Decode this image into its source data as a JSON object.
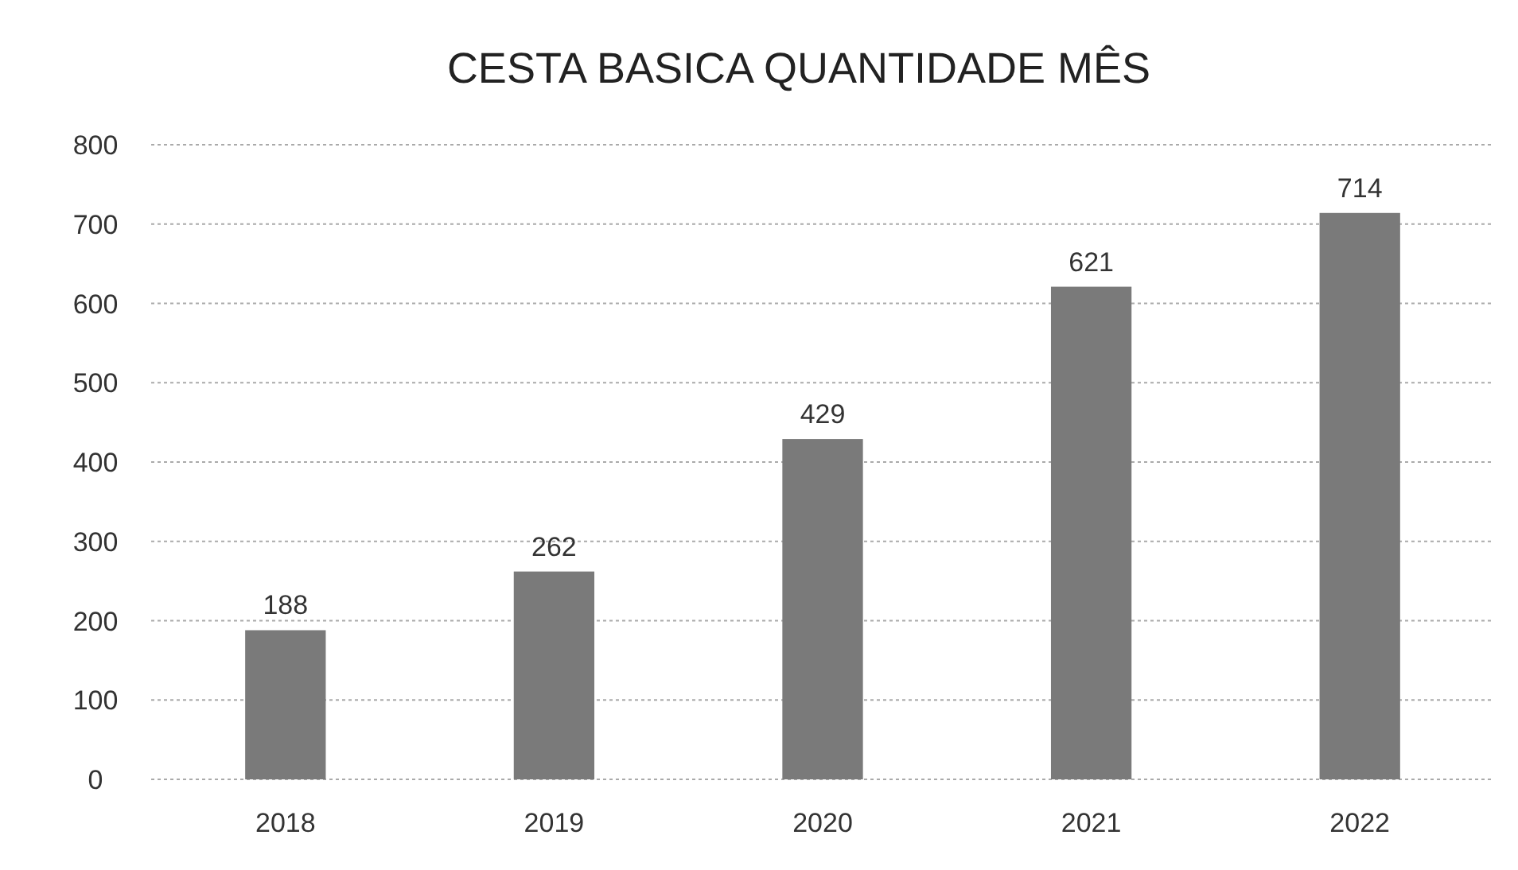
{
  "chart_data": {
    "type": "bar",
    "title": "CESTA BASICA QUANTIDADE MÊS",
    "categories": [
      "2018",
      "2019",
      "2020",
      "2021",
      "2022"
    ],
    "values": [
      188,
      262,
      429,
      621,
      714
    ],
    "color": "#7a7a7a",
    "ylim": [
      0,
      800
    ],
    "yticks": [
      0,
      100,
      200,
      300,
      400,
      500,
      600,
      700,
      800
    ],
    "grid": "y",
    "data_labels": true
  }
}
